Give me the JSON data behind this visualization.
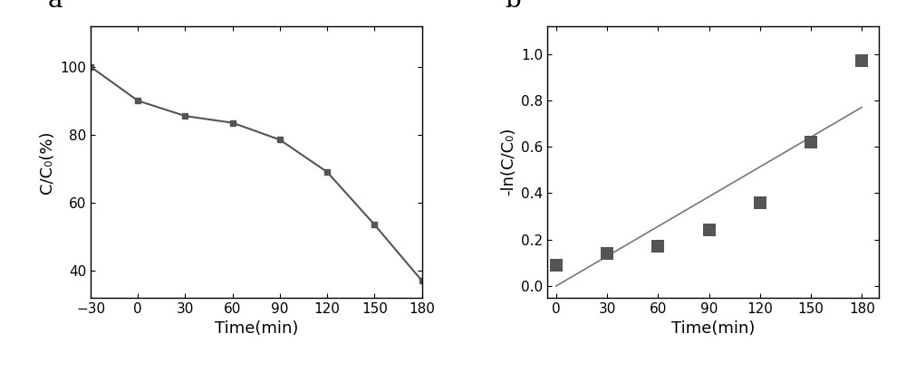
{
  "panel_a": {
    "x": [
      -30,
      0,
      30,
      60,
      90,
      120,
      150,
      180
    ],
    "y": [
      100,
      90,
      85.5,
      83.5,
      78.5,
      69,
      53.5,
      37
    ],
    "xlabel": "Time(min)",
    "ylabel": "C/C₀(%)",
    "xlim": [
      -30,
      180
    ],
    "ylim": [
      32,
      112
    ],
    "xticks": [
      -30,
      0,
      30,
      60,
      90,
      120,
      150,
      180
    ],
    "yticks": [
      40,
      60,
      80,
      100
    ],
    "label": "a",
    "color": "#555555",
    "marker": "s",
    "markersize": 5,
    "linewidth": 1.5
  },
  "panel_b": {
    "x": [
      0,
      30,
      60,
      90,
      120,
      150,
      180
    ],
    "y": [
      0.09,
      0.14,
      0.17,
      0.24,
      0.36,
      0.62,
      0.97
    ],
    "fit_x": [
      0,
      180
    ],
    "fit_y": [
      0.0,
      0.77
    ],
    "xlabel": "Time(min)",
    "ylabel": "-ln(C/C₀)",
    "xlim": [
      -5,
      190
    ],
    "ylim": [
      -0.05,
      1.12
    ],
    "xticks": [
      0,
      30,
      60,
      90,
      120,
      150,
      180
    ],
    "yticks": [
      0.0,
      0.2,
      0.4,
      0.6,
      0.8,
      1.0
    ],
    "label": "b",
    "color": "#555555",
    "fit_color": "#777777",
    "marker": "s",
    "markersize": 5,
    "linewidth": 1.2
  },
  "background_color": "#ffffff",
  "label_fontsize": 13,
  "tick_fontsize": 11,
  "panel_label_fontsize": 20
}
